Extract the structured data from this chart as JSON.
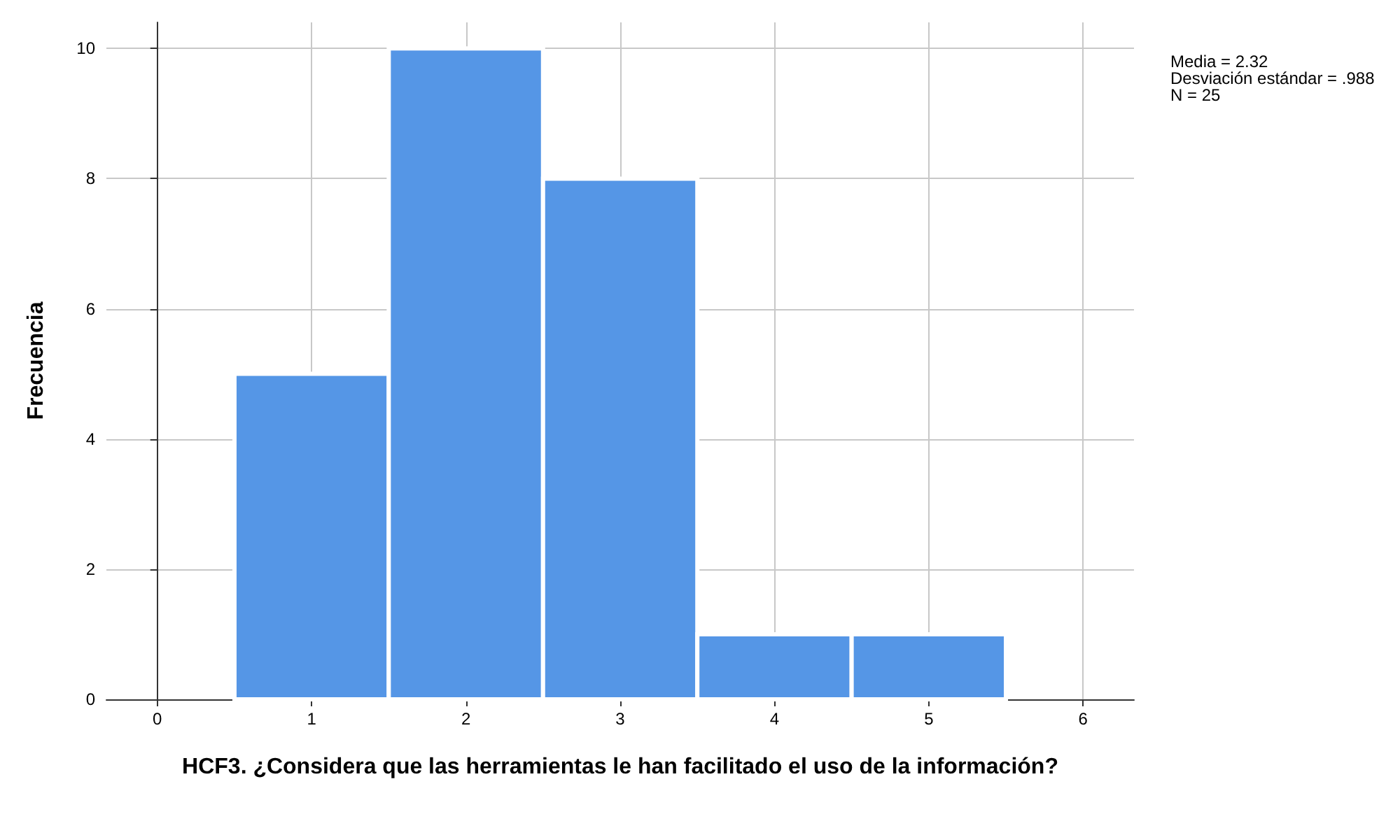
{
  "chart_data": {
    "type": "histogram",
    "xlabel": "HCF3. ¿Considera que las herramientas le han facilitado el uso de la información?",
    "ylabel": "Frecuencia",
    "bins": [
      0.5,
      1.5,
      2.5,
      3.5,
      4.5,
      5.5
    ],
    "values": [
      5,
      10,
      8,
      1,
      1
    ],
    "color": "#5596e6",
    "xlim": [
      -0.33,
      6.33
    ],
    "xticks": [
      0,
      1,
      2,
      3,
      4,
      5,
      6
    ],
    "ylim": [
      0,
      10.4
    ],
    "yticks": [
      0,
      2,
      4,
      6,
      8,
      10
    ],
    "grid": true,
    "annotations": [
      "Media = 2.32",
      "Desviación estándar = .988",
      "N = 25"
    ]
  }
}
